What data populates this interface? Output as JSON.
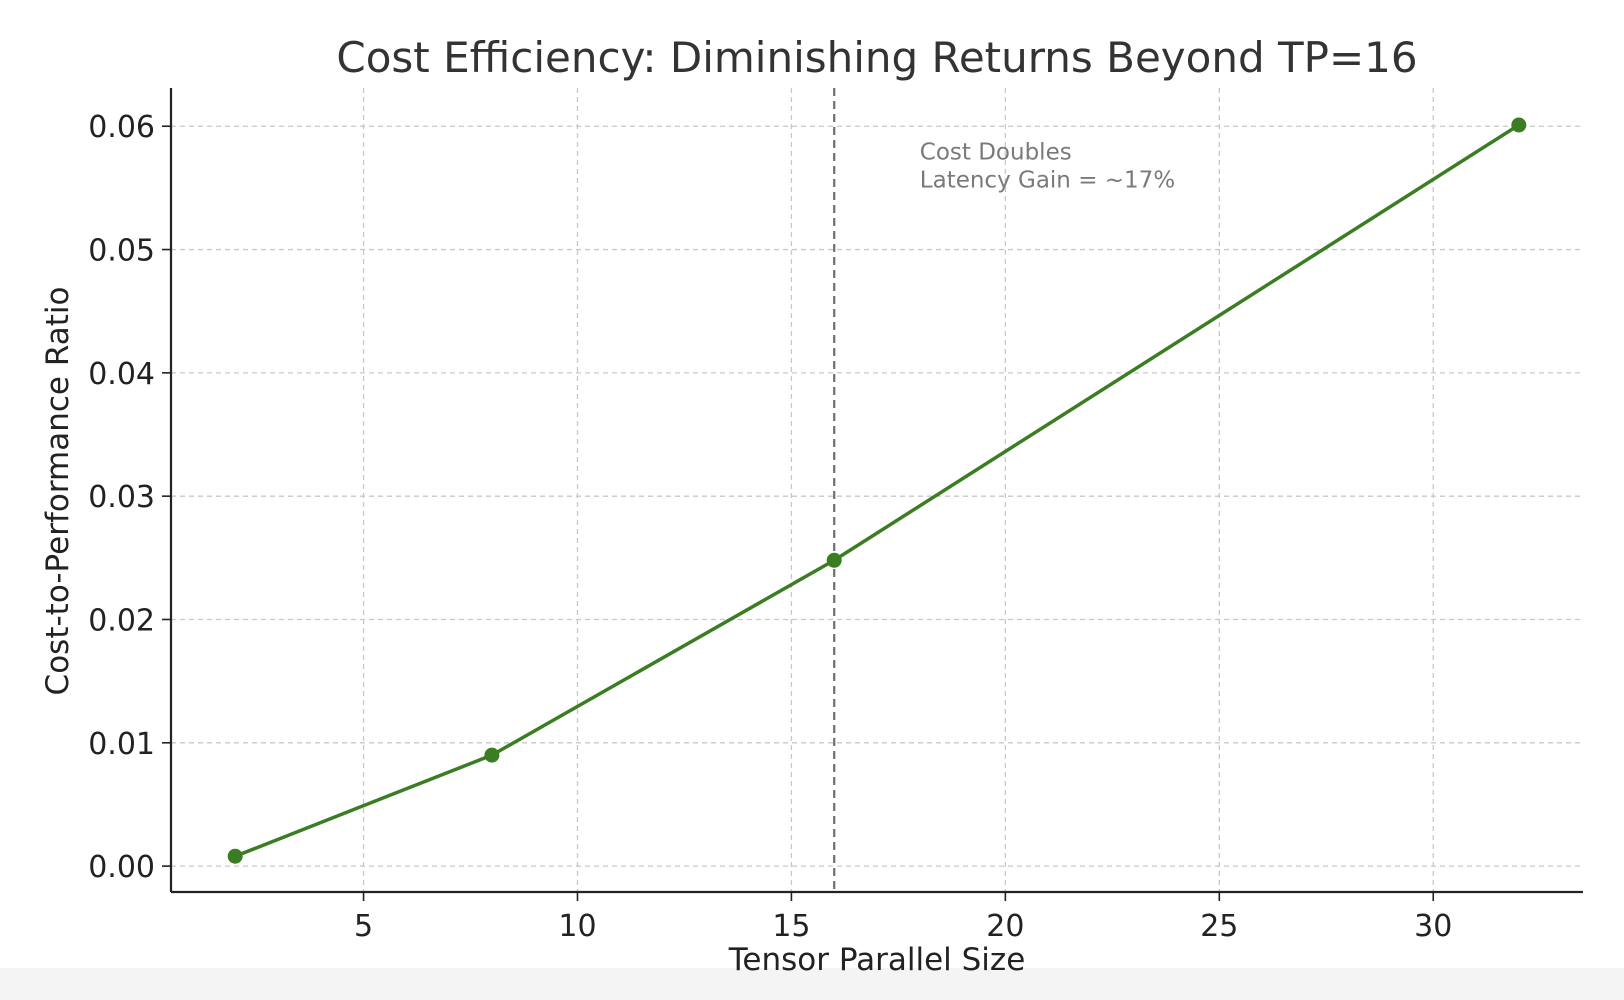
{
  "chart_data": {
    "type": "line",
    "title": "Cost Efficiency: Diminishing Returns Beyond TP=16",
    "xlabel": "Tensor Parallel Size",
    "ylabel": "Cost-to-Performance Ratio",
    "xlim": [
      0.5,
      33.5
    ],
    "ylim": [
      -0.0021,
      0.0631
    ],
    "x_ticks": [
      5,
      10,
      15,
      20,
      25,
      30
    ],
    "y_ticks": [
      0.0,
      0.01,
      0.02,
      0.03,
      0.04,
      0.05,
      0.06
    ],
    "y_tick_decimals": 2,
    "grid": true,
    "legend": "none",
    "series": [
      {
        "color": "#3a7d22",
        "marker": "circle",
        "x": [
          2,
          8,
          16,
          32
        ],
        "y": [
          0.0008,
          0.009,
          0.0248,
          0.0601
        ]
      }
    ],
    "reference_line": {
      "axis": "x",
      "value": 16,
      "color": "#6e6e6e",
      "style": "dashed"
    },
    "annotation": {
      "lines": [
        "Cost Doubles",
        "Latency Gain = ~17%"
      ],
      "x": 18,
      "y": 0.0573
    }
  }
}
